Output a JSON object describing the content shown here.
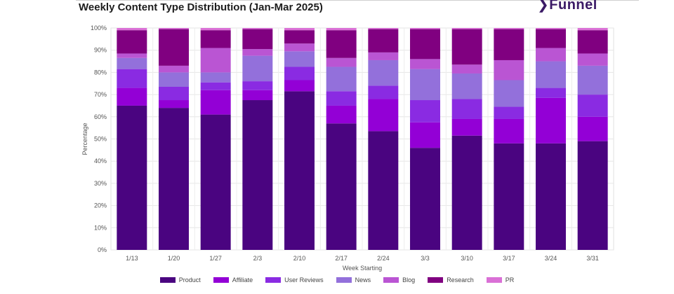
{
  "title": "Weekly Content Type Distribution (Jan-Mar 2025)",
  "logo_text": "Funnel",
  "chart_data": {
    "type": "bar",
    "stacked": true,
    "title": "Weekly Content Type Distribution (Jan-Mar 2025)",
    "xlabel": "Week Starting",
    "ylabel": "Percentage",
    "ylim": [
      0,
      100
    ],
    "yticks": [
      "0%",
      "10%",
      "20%",
      "30%",
      "40%",
      "50%",
      "60%",
      "70%",
      "80%",
      "90%",
      "100%"
    ],
    "grid": true,
    "legend_position": "bottom",
    "categories": [
      "1/13",
      "1/20",
      "1/27",
      "2/3",
      "2/10",
      "2/17",
      "2/24",
      "3/3",
      "3/10",
      "3/17",
      "3/24",
      "3/31"
    ],
    "series": [
      {
        "name": "Product",
        "color": "#4a0480",
        "values": [
          65,
          64,
          61,
          67.5,
          71.5,
          57,
          53.5,
          46,
          51.5,
          48,
          48,
          49
        ]
      },
      {
        "name": "Affiliate",
        "color": "#9300d6",
        "values": [
          8,
          3.5,
          11,
          4.5,
          5,
          8,
          14.5,
          11.5,
          7.5,
          11,
          20.5,
          11
        ]
      },
      {
        "name": "User Reviews",
        "color": "#8a2be2",
        "values": [
          8.5,
          6,
          3.5,
          4,
          6,
          6.5,
          6,
          10,
          9,
          5.5,
          4.5,
          10
        ]
      },
      {
        "name": "News",
        "color": "#9370db",
        "values": [
          5,
          6.5,
          4.5,
          11.5,
          7,
          11,
          11.5,
          14,
          11.5,
          12,
          12,
          13
        ]
      },
      {
        "name": "Blog",
        "color": "#ba55d3",
        "values": [
          2,
          3,
          11,
          3,
          3.5,
          4,
          3.5,
          4.5,
          4,
          9,
          6,
          5.5
        ]
      },
      {
        "name": "Research",
        "color": "#800080",
        "values": [
          10.5,
          16.5,
          8,
          9,
          6,
          12.5,
          10.5,
          13.5,
          16,
          14,
          8.5,
          10.5
        ]
      },
      {
        "name": "PR",
        "color": "#da70d6",
        "values": [
          1,
          0.5,
          1,
          0.5,
          1,
          1,
          0.5,
          0.5,
          0.5,
          0.5,
          0.5,
          1
        ]
      }
    ]
  }
}
